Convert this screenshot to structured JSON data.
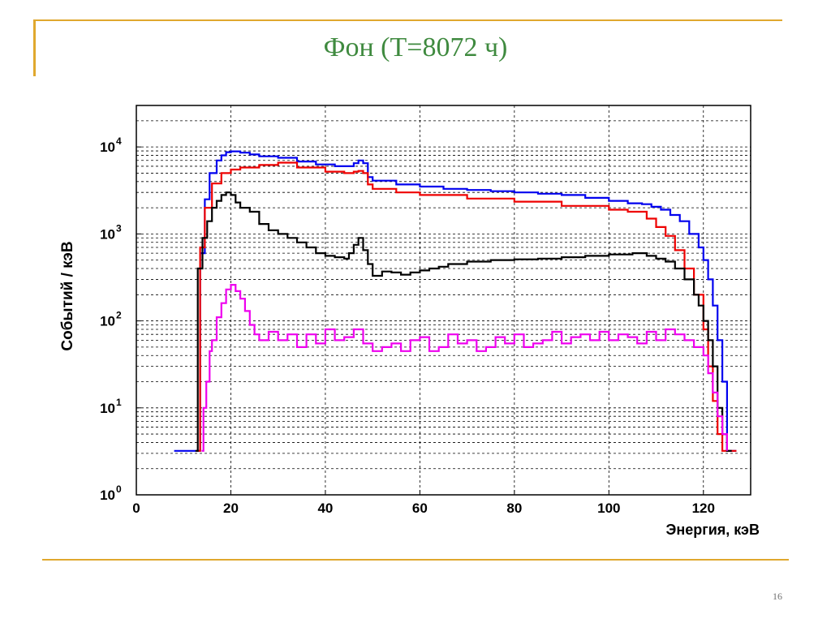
{
  "slide": {
    "title": "Фон (Т=8072 ч)",
    "page_number": "16"
  },
  "colors": {
    "accent_line": "#e0a82e",
    "title": "#3f8a3f"
  },
  "chart_data": {
    "type": "line",
    "title": "",
    "xlabel": "Энергия, кэВ",
    "ylabel": "Событий / кэВ",
    "xlim": [
      0,
      130
    ],
    "ylim": [
      1,
      30000
    ],
    "yscale": "log",
    "x_ticks": [
      0,
      20,
      40,
      60,
      80,
      100,
      120
    ],
    "y_ticks": [
      {
        "value": 1,
        "base": "10",
        "exp": "0"
      },
      {
        "value": 10,
        "base": "10",
        "exp": "1"
      },
      {
        "value": 100,
        "base": "10",
        "exp": "2"
      },
      {
        "value": 1000,
        "base": "10",
        "exp": "3"
      },
      {
        "value": 10000,
        "base": "10",
        "exp": "4"
      }
    ],
    "grid": true,
    "legend": "none",
    "series": [
      {
        "color": "#0000ee",
        "x": [
          8,
          12.7,
          13.5,
          14.5,
          15.5,
          17,
          18,
          19,
          20,
          22,
          24,
          26,
          30,
          34,
          38,
          42,
          44,
          46,
          47,
          48,
          49,
          50,
          55,
          60,
          65,
          70,
          75,
          80,
          85,
          90,
          95,
          100,
          104,
          107,
          109,
          111,
          113,
          115,
          117,
          119,
          120,
          121,
          122,
          123,
          124,
          125,
          126,
          127
        ],
        "y": [
          3.2,
          3.2,
          600,
          2500,
          5000,
          7000,
          8000,
          8700,
          8900,
          8600,
          8200,
          7800,
          7500,
          6800,
          6300,
          6000,
          6000,
          6500,
          7000,
          6500,
          4500,
          4100,
          3700,
          3500,
          3300,
          3200,
          3100,
          3000,
          2900,
          2800,
          2600,
          2400,
          2250,
          2200,
          2050,
          1900,
          1650,
          1400,
          1000,
          700,
          500,
          300,
          150,
          60,
          20,
          3.2,
          3.2,
          3.2
        ]
      },
      {
        "color": "#ee0000",
        "x": [
          12.9,
          13.5,
          14.5,
          16,
          18,
          20,
          22,
          26,
          30,
          34,
          40,
          44,
          46,
          47,
          48,
          49,
          50,
          55,
          60,
          70,
          80,
          90,
          100,
          104,
          108,
          110,
          112,
          114,
          116,
          118,
          120,
          121,
          122,
          123,
          124,
          125,
          126,
          127
        ],
        "y": [
          3.2,
          700,
          2000,
          3800,
          5000,
          5500,
          5800,
          6200,
          6600,
          5800,
          5200,
          5000,
          5200,
          5300,
          5000,
          3700,
          3300,
          3000,
          2800,
          2550,
          2350,
          2100,
          1900,
          1800,
          1500,
          1200,
          950,
          650,
          400,
          200,
          80,
          30,
          12,
          5,
          3.2,
          3.2,
          3.2,
          3.2
        ]
      },
      {
        "color": "#000000",
        "x": [
          12.5,
          13,
          14,
          15,
          16,
          17,
          18,
          19,
          20,
          21,
          22,
          24,
          26,
          28,
          30,
          32,
          34,
          36,
          38,
          40,
          42,
          44,
          45,
          46,
          47,
          48,
          49,
          50,
          52,
          54,
          56,
          58,
          60,
          62,
          64,
          66,
          70,
          75,
          80,
          85,
          90,
          95,
          100,
          105,
          108,
          110,
          112,
          114,
          116,
          118,
          119,
          120,
          121,
          122,
          123,
          124,
          125,
          126
        ],
        "y": [
          3.2,
          400,
          900,
          1400,
          2000,
          2400,
          2800,
          3000,
          2800,
          2300,
          2000,
          1800,
          1300,
          1100,
          1000,
          900,
          800,
          700,
          600,
          560,
          540,
          520,
          600,
          750,
          900,
          650,
          450,
          330,
          370,
          360,
          340,
          360,
          380,
          400,
          420,
          450,
          480,
          500,
          510,
          520,
          540,
          560,
          580,
          600,
          560,
          520,
          480,
          400,
          300,
          200,
          150,
          100,
          60,
          30,
          10,
          5,
          3.2,
          3.2
        ]
      },
      {
        "color": "#ee00ee",
        "x": [
          13.8,
          14.2,
          14.8,
          15.5,
          16,
          17,
          18,
          19,
          20,
          21,
          22,
          23,
          24,
          25,
          26,
          28,
          30,
          32,
          34,
          36,
          38,
          40,
          42,
          44,
          46,
          48,
          50,
          52,
          54,
          56,
          58,
          60,
          62,
          64,
          66,
          68,
          70,
          72,
          74,
          76,
          78,
          80,
          82,
          84,
          86,
          88,
          90,
          92,
          94,
          96,
          98,
          100,
          102,
          104,
          106,
          108,
          110,
          112,
          114,
          116,
          118,
          120,
          121,
          122,
          123,
          124,
          125
        ],
        "y": [
          3.2,
          10,
          20,
          45,
          60,
          110,
          160,
          230,
          260,
          220,
          180,
          130,
          90,
          70,
          60,
          75,
          60,
          70,
          50,
          70,
          55,
          80,
          60,
          65,
          80,
          55,
          45,
          50,
          55,
          45,
          60,
          65,
          45,
          50,
          70,
          55,
          60,
          45,
          50,
          65,
          55,
          70,
          50,
          55,
          60,
          75,
          55,
          65,
          70,
          60,
          75,
          60,
          70,
          65,
          55,
          75,
          60,
          80,
          70,
          60,
          50,
          40,
          25,
          15,
          8,
          5,
          3.2
        ]
      }
    ]
  }
}
